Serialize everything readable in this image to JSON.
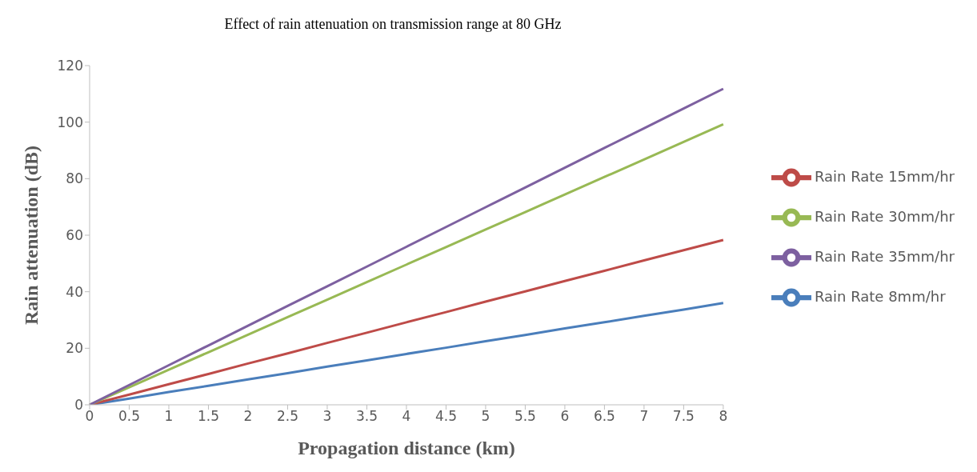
{
  "chart_data": {
    "type": "line",
    "title": "Effect of rain attenuation on transmission range at 80 GHz",
    "xlabel": "Propagation distance (km)",
    "ylabel": "Rain attenuation (dB)",
    "categories": [
      "0",
      "0.5",
      "1",
      "1.5",
      "2",
      "2.5",
      "3",
      "3.5",
      "4",
      "4.5",
      "5",
      "5.5",
      "6",
      "6.5",
      "7",
      "7.5",
      "8"
    ],
    "series": [
      {
        "name": "Rain Rate 8mm/hr",
        "color": "#4a7ebb",
        "values": [
          0,
          2.2,
          4.5,
          6.7,
          9,
          11.2,
          13.5,
          15.7,
          18,
          20.2,
          22.5,
          24.7,
          27,
          29.2,
          31.5,
          33.7,
          36
        ]
      },
      {
        "name": "Rain Rate 15mm/hr",
        "color": "#be4b48",
        "values": [
          0,
          3.6,
          7.3,
          10.9,
          14.6,
          18.2,
          21.9,
          25.5,
          29.2,
          32.8,
          36.5,
          40.1,
          43.8,
          47.4,
          51.1,
          54.7,
          58.3
        ]
      },
      {
        "name": "Rain Rate 30mm/hr",
        "color": "#98b954",
        "values": [
          0,
          6.2,
          12.4,
          18.6,
          24.8,
          31,
          37.2,
          43.4,
          49.6,
          55.8,
          62,
          68.2,
          74.4,
          80.6,
          86.8,
          93,
          99.2
        ]
      },
      {
        "name": "Rain Rate 35mm/hr",
        "color": "#7d60a0",
        "values": [
          0,
          7,
          14,
          21,
          28,
          35,
          41.9,
          48.9,
          55.9,
          62.9,
          69.9,
          76.9,
          83.9,
          90.9,
          97.8,
          104.8,
          111.8
        ]
      }
    ],
    "ylim": [
      0,
      120
    ],
    "yticks": [
      0,
      20,
      40,
      60,
      80,
      100,
      120
    ],
    "grid": false,
    "legend": "right",
    "marker": "none",
    "line_style": "solid"
  }
}
